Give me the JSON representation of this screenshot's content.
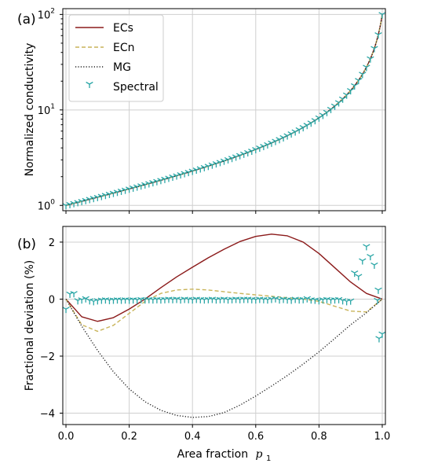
{
  "chart_data": [
    {
      "panel": "(a)",
      "type": "line",
      "xlabel": "",
      "ylabel": "Normalized conductivity",
      "xlim": [
        -0.01,
        1.01
      ],
      "ylim": [
        0.88,
        115
      ],
      "yscale": "log",
      "yticks": [
        {
          "value": 1,
          "base": "10",
          "exp": "0"
        },
        {
          "value": 10,
          "base": "10",
          "exp": "1"
        },
        {
          "value": 100,
          "base": "10",
          "exp": "2"
        }
      ],
      "grid": true,
      "legend": {
        "position": "top-left",
        "entries": [
          {
            "label": "ECs",
            "color": "#8b1a1a",
            "style": "solid"
          },
          {
            "label": "ECn",
            "color": "#c9b45a",
            "style": "dashed"
          },
          {
            "label": "MG",
            "color": "#222222",
            "style": "dotted"
          },
          {
            "label": "Spectral",
            "color": "#2aa6a6",
            "style": "marker"
          }
        ]
      },
      "series": [
        {
          "name": "ECs",
          "curve": "mg_ratio"
        },
        {
          "name": "ECn",
          "curve": "mg_ratio"
        },
        {
          "name": "MG",
          "curve": "mg_ratio"
        },
        {
          "name": "Spectral",
          "curve": "mg_ratio_markers",
          "x_start": 0.0,
          "x_end": 1.0,
          "x_step": 0.0125
        }
      ],
      "model": {
        "contrast_ratio": 100
      }
    },
    {
      "panel": "(b)",
      "type": "line",
      "xlabel": "Area fraction",
      "xlabel_math": "p",
      "xlabel_sub": "1",
      "ylabel": "Fractional deviation (%)",
      "xlim": [
        -0.01,
        1.01
      ],
      "ylim": [
        -4.4,
        2.55
      ],
      "xticks": [
        "0.0",
        "0.2",
        "0.4",
        "0.6",
        "0.8",
        "1.0"
      ],
      "yticks": [
        -4,
        -2,
        0,
        2
      ],
      "grid": true,
      "series": [
        {
          "name": "ECs",
          "color": "#8b1a1a",
          "style": "solid",
          "x": [
            0,
            0.05,
            0.1,
            0.15,
            0.2,
            0.25,
            0.3,
            0.35,
            0.4,
            0.45,
            0.5,
            0.55,
            0.6,
            0.65,
            0.7,
            0.75,
            0.8,
            0.85,
            0.9,
            0.95,
            1.0
          ],
          "y": [
            0,
            -0.62,
            -0.78,
            -0.65,
            -0.35,
            0.0,
            0.4,
            0.78,
            1.12,
            1.45,
            1.75,
            2.02,
            2.2,
            2.28,
            2.22,
            2.0,
            1.6,
            1.1,
            0.6,
            0.2,
            0
          ]
        },
        {
          "name": "ECn",
          "color": "#c9b45a",
          "style": "dashed",
          "x": [
            0,
            0.05,
            0.1,
            0.15,
            0.2,
            0.25,
            0.3,
            0.35,
            0.4,
            0.45,
            0.5,
            0.55,
            0.6,
            0.65,
            0.7,
            0.75,
            0.8,
            0.85,
            0.9,
            0.95,
            1.0
          ],
          "y": [
            0,
            -0.9,
            -1.13,
            -0.92,
            -0.5,
            -0.08,
            0.2,
            0.32,
            0.35,
            0.32,
            0.26,
            0.2,
            0.15,
            0.1,
            0.05,
            0.0,
            -0.08,
            -0.25,
            -0.42,
            -0.45,
            0
          ]
        },
        {
          "name": "MG",
          "color": "#222222",
          "style": "dotted",
          "x": [
            0,
            0.05,
            0.1,
            0.15,
            0.2,
            0.25,
            0.3,
            0.35,
            0.4,
            0.45,
            0.5,
            0.55,
            0.6,
            0.65,
            0.7,
            0.75,
            0.8,
            0.85,
            0.9,
            0.95,
            1.0
          ],
          "y": [
            0,
            -0.95,
            -1.8,
            -2.55,
            -3.15,
            -3.6,
            -3.9,
            -4.08,
            -4.15,
            -4.12,
            -3.98,
            -3.72,
            -3.4,
            -3.05,
            -2.68,
            -2.28,
            -1.85,
            -1.38,
            -0.9,
            -0.48,
            0
          ]
        },
        {
          "name": "Spectral",
          "color": "#2aa6a6",
          "style": "marker",
          "x": [
            0.0,
            0.0125,
            0.025,
            0.0375,
            0.05,
            0.0625,
            0.075,
            0.0875,
            0.1,
            0.1125,
            0.125,
            0.1375,
            0.15,
            0.1625,
            0.175,
            0.1875,
            0.2,
            0.2125,
            0.225,
            0.2375,
            0.25,
            0.2625,
            0.275,
            0.2875,
            0.3,
            0.3125,
            0.325,
            0.3375,
            0.35,
            0.3625,
            0.375,
            0.3875,
            0.4,
            0.4125,
            0.425,
            0.4375,
            0.45,
            0.4625,
            0.475,
            0.4875,
            0.5,
            0.5125,
            0.525,
            0.5375,
            0.55,
            0.5625,
            0.575,
            0.5875,
            0.6,
            0.6125,
            0.625,
            0.6375,
            0.65,
            0.6625,
            0.675,
            0.6875,
            0.7,
            0.7125,
            0.725,
            0.7375,
            0.75,
            0.7625,
            0.775,
            0.7875,
            0.8,
            0.8125,
            0.825,
            0.8375,
            0.85,
            0.8625,
            0.875,
            0.8875,
            0.9,
            0.9125,
            0.925,
            0.9375,
            0.95,
            0.9625,
            0.975,
            0.9875,
            1.0,
            0.985,
            0.99
          ],
          "y": [
            -0.35,
            0.18,
            0.2,
            -0.05,
            -0.02,
            0.02,
            -0.05,
            -0.08,
            -0.05,
            -0.03,
            -0.02,
            -0.04,
            -0.03,
            -0.02,
            -0.03,
            -0.02,
            -0.03,
            -0.02,
            -0.03,
            -0.01,
            -0.02,
            -0.01,
            -0.02,
            -0.01,
            -0.02,
            -0.01,
            0.0,
            -0.01,
            0.0,
            -0.02,
            0.0,
            -0.01,
            -0.02,
            0.0,
            -0.01,
            -0.02,
            -0.01,
            0.0,
            -0.02,
            -0.01,
            0.0,
            -0.02,
            -0.01,
            0.0,
            -0.01,
            0.0,
            0.0,
            -0.01,
            -0.02,
            0.0,
            -0.01,
            -0.02,
            0.0,
            0.02,
            -0.02,
            0.0,
            -0.02,
            -0.03,
            0.0,
            -0.02,
            -0.01,
            0.02,
            -0.02,
            -0.03,
            -0.05,
            -0.02,
            -0.01,
            -0.03,
            -0.02,
            -0.01,
            -0.05,
            -0.08,
            -0.06,
            0.92,
            0.8,
            1.35,
            1.85,
            1.5,
            1.2,
            0.32,
            -1.22,
            -0.04,
            -1.38
          ]
        }
      ]
    }
  ]
}
